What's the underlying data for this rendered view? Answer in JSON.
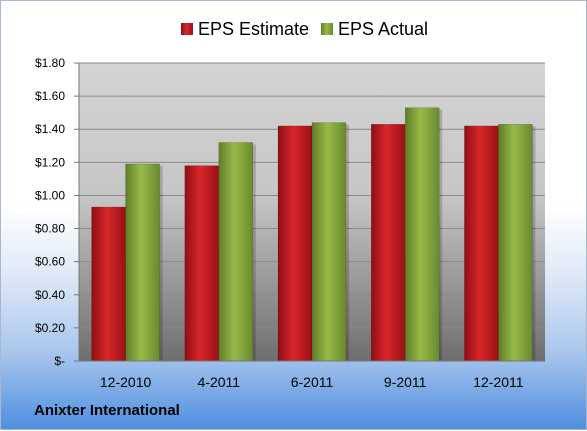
{
  "company": "Anixter International",
  "legend": {
    "estimate_label": "EPS Estimate",
    "actual_label": "EPS Actual"
  },
  "colors": {
    "estimate": "#c0191f",
    "actual": "#86a83c",
    "plot_top": "#d4d4d4",
    "plot_bottom": "#6e6e6e"
  },
  "chart_data": {
    "type": "bar",
    "categories": [
      "12-2010",
      "4-2011",
      "6-2011",
      "9-2011",
      "12-2011"
    ],
    "series": [
      {
        "name": "EPS Estimate",
        "values": [
          0.93,
          1.18,
          1.42,
          1.43,
          1.42
        ]
      },
      {
        "name": "EPS Actual",
        "values": [
          1.19,
          1.32,
          1.44,
          1.53,
          1.43
        ]
      }
    ],
    "ylim": [
      0,
      1.8
    ],
    "yticks": [
      0,
      0.2,
      0.4,
      0.6,
      0.8,
      1.0,
      1.2,
      1.4,
      1.6,
      1.8
    ],
    "ytick_labels": [
      "$-",
      "$0.20",
      "$0.40",
      "$0.60",
      "$0.80",
      "$1.00",
      "$1.20",
      "$1.40",
      "$1.60",
      "$1.80"
    ],
    "grid": true,
    "legend_position": "top"
  }
}
